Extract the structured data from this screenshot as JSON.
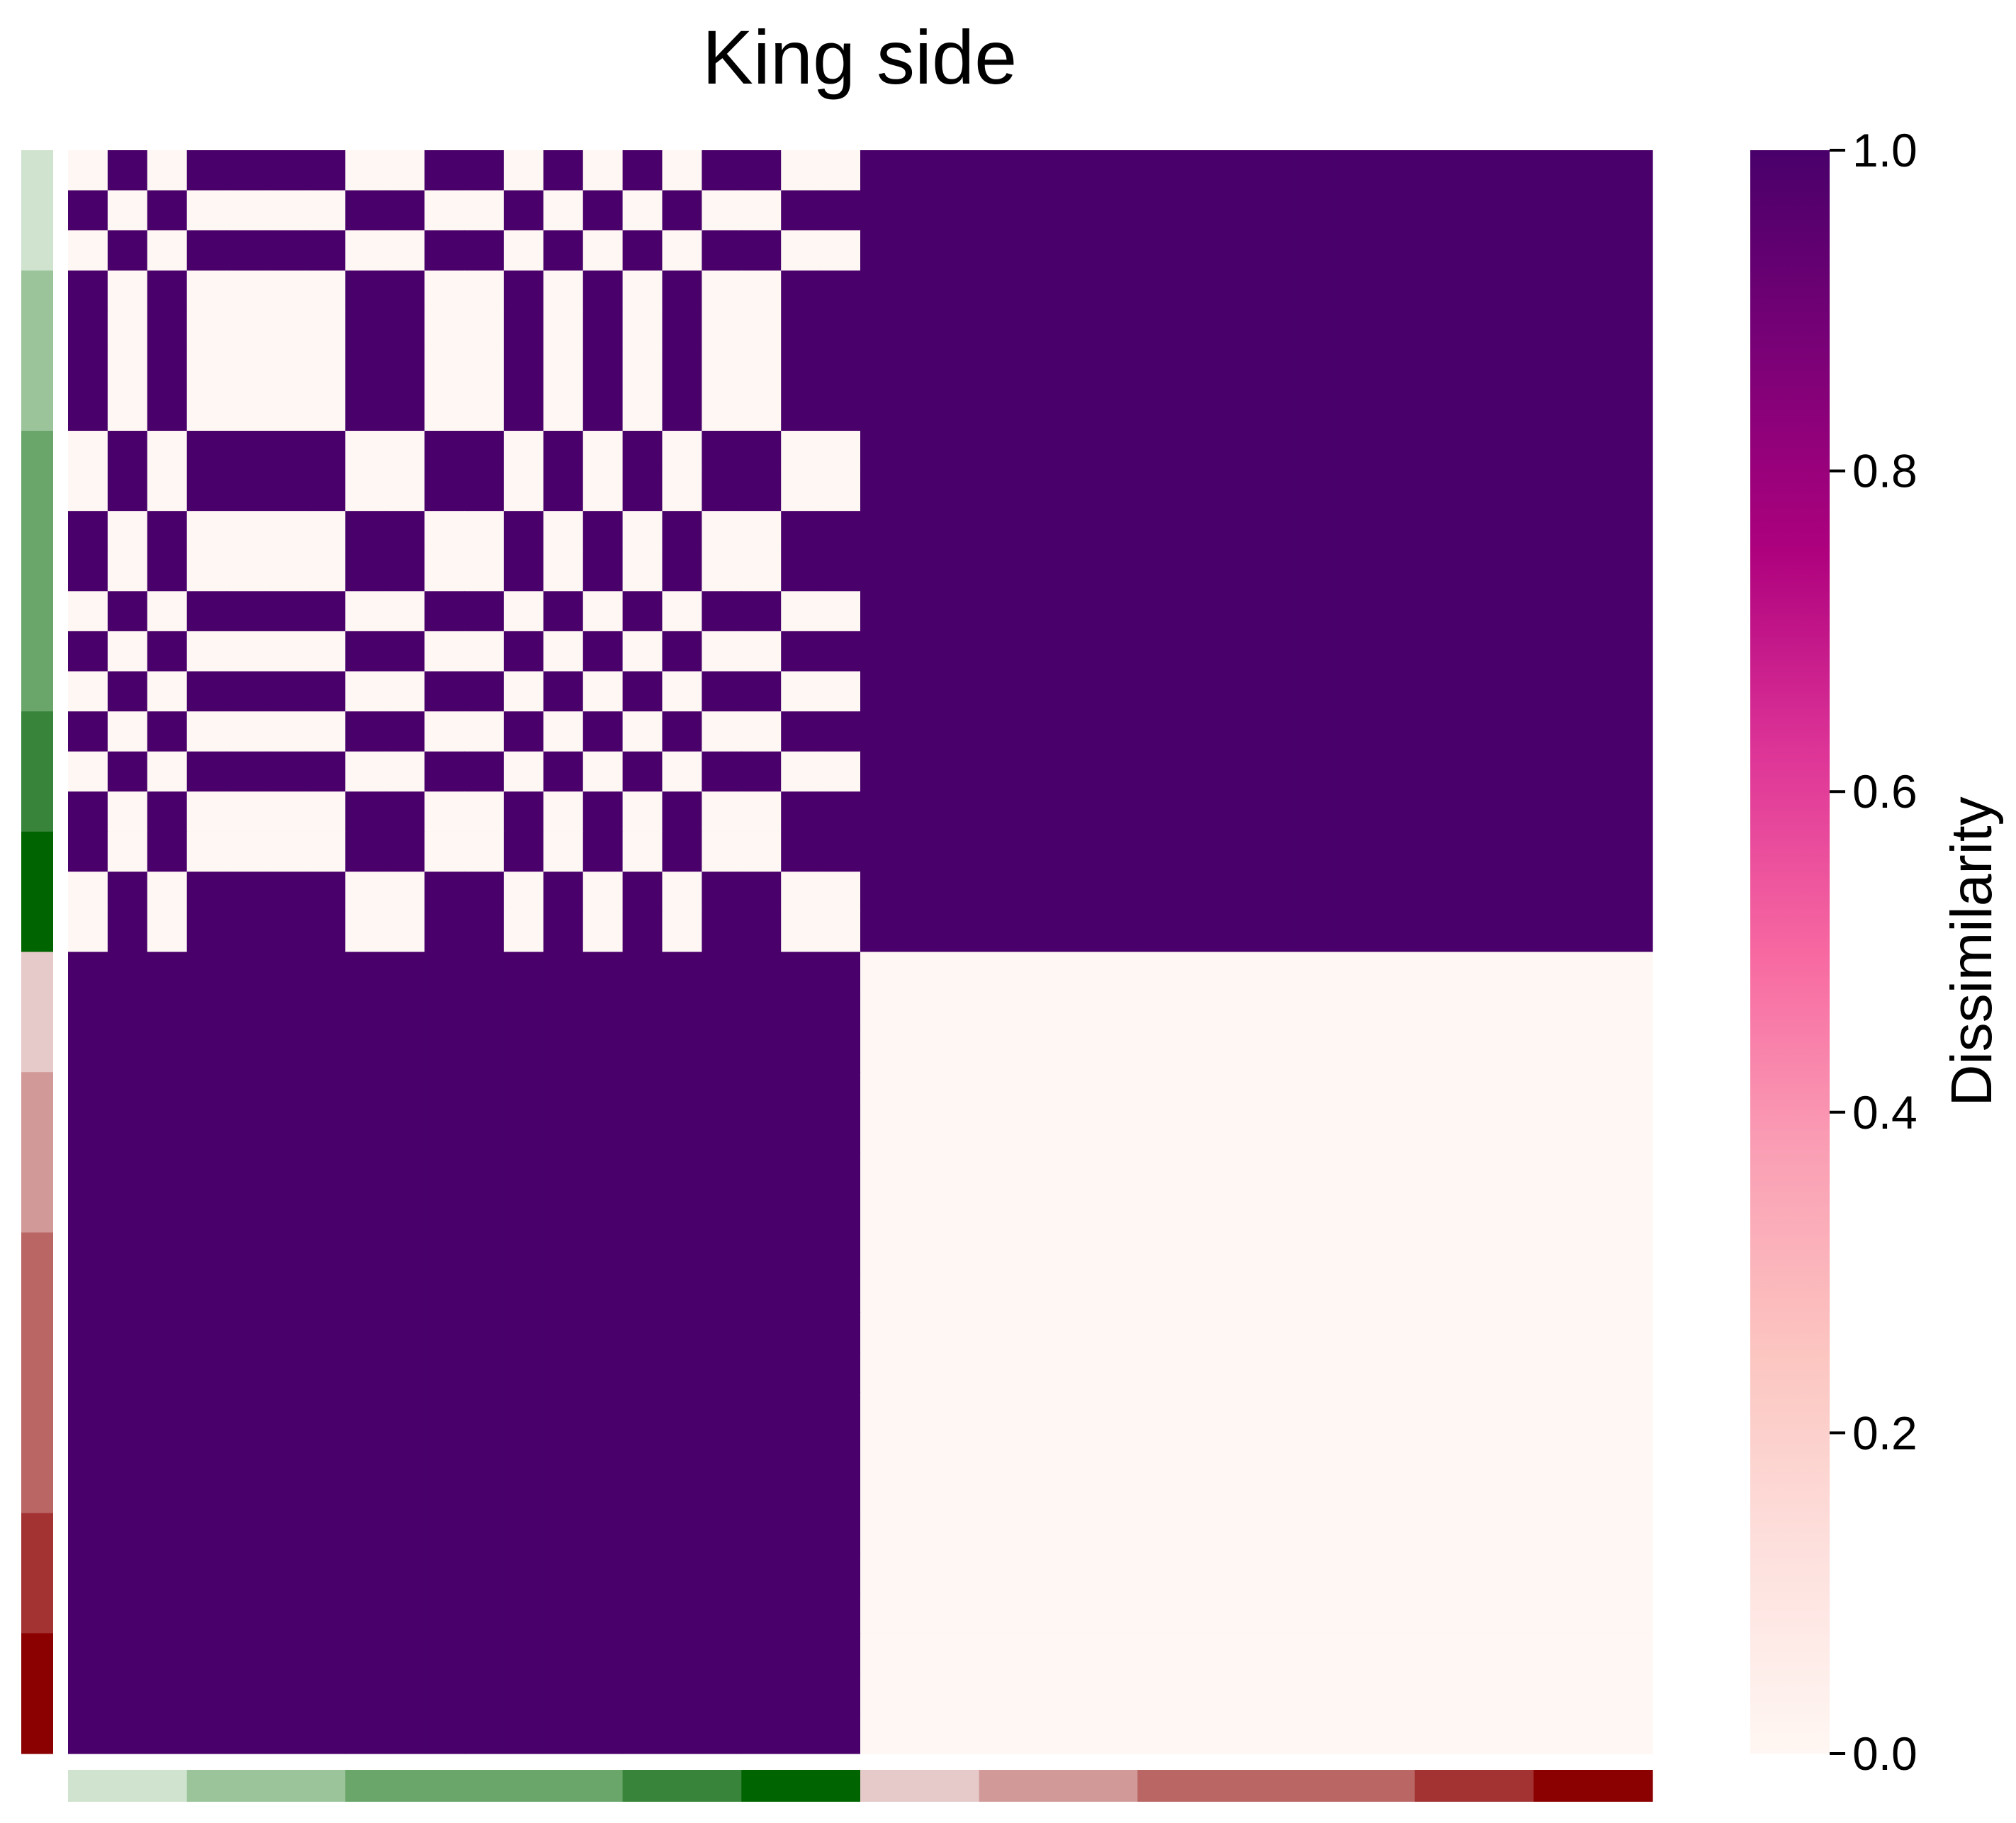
{
  "chart_data": {
    "type": "heatmap",
    "title": "King side",
    "colorbar": {
      "label": "Dissimilarity",
      "range": [
        0.0,
        1.0
      ],
      "ticks": [
        "0.0",
        "0.2",
        "0.4",
        "0.6",
        "0.8",
        "1.0"
      ],
      "colormap": [
        "#fff7f3",
        "#fde0dd",
        "#fcc5c0",
        "#fa9fb5",
        "#f768a1",
        "#dd3497",
        "#ae017e",
        "#7a0177",
        "#49006a"
      ]
    },
    "n_rows": 40,
    "n_cols": 40,
    "group_pattern": [
      1,
      0,
      1,
      0,
      0,
      0,
      0,
      1,
      1,
      0,
      0,
      1,
      0,
      1,
      0,
      1,
      0,
      0,
      1,
      1
    ],
    "description_of_values": "Cell (i,j) = 1.0 when rows i and j differ in group membership, else 0.0; rows 1-20 compared by group_pattern, rows 21-40 all same class",
    "row_colors": {
      "colors": [
        "#cfe3cf",
        "#9bc49b",
        "#6aa56a",
        "#37843a",
        "#006400",
        "#e6c9c9",
        "#d19a99",
        "#ba6665",
        "#a33232",
        "#8b0000"
      ],
      "counts": [
        3,
        4,
        7,
        3,
        3,
        3,
        4,
        7,
        3,
        3
      ]
    }
  }
}
